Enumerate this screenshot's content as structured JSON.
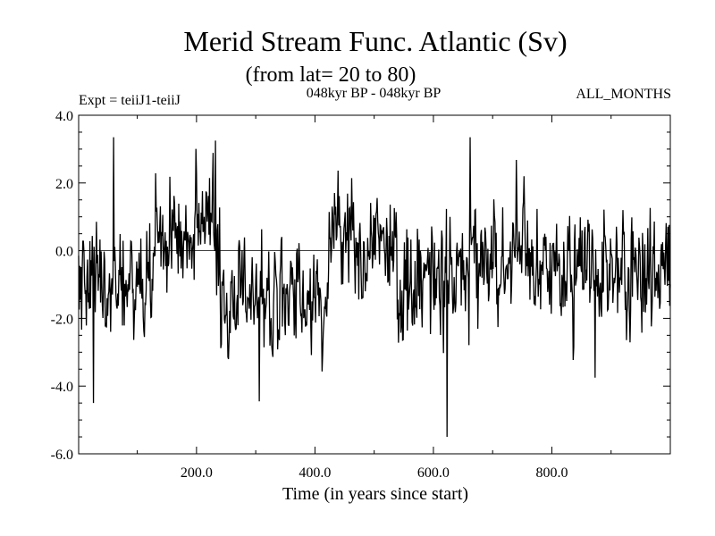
{
  "chart_data": {
    "type": "line",
    "title": "Merid Stream Func. Atlantic (Sv)",
    "subtitle": "(from lat= 20 to 80)",
    "experiment": "Expt = teiiJ1-teiiJ",
    "period": "048kyr BP - 048kyr BP",
    "months": "ALL_MONTHS",
    "xlabel": "Time (in years since start)",
    "ylabel": "",
    "xlim": [
      1,
      1000
    ],
    "ylim": [
      -6.0,
      4.0
    ],
    "x_ticks": [
      200,
      400,
      600,
      800
    ],
    "x_tick_labels": [
      "200.0",
      "400.0",
      "600.0",
      "800.0"
    ],
    "y_ticks": [
      -6,
      -4,
      -2,
      0,
      2,
      4
    ],
    "y_tick_labels": [
      "-6.0",
      "-4.0",
      "-2.0",
      "0.0",
      "2.0",
      "4.0"
    ],
    "zero_line": true,
    "grid": false,
    "line_color": "#000000",
    "series": [
      {
        "x_start": 1,
        "x_step": 1,
        "min": -5.5,
        "max": 3.4,
        "notable_points": [
          {
            "x": 60,
            "y": 3.35
          },
          {
            "x": 26,
            "y": -4.5
          },
          {
            "x": 232,
            "y": 3.25
          },
          {
            "x": 306,
            "y": -4.45
          },
          {
            "x": 623,
            "y": -5.5
          },
          {
            "x": 662,
            "y": 3.35
          },
          {
            "x": 873,
            "y": -3.75
          }
        ],
        "segment_means": [
          {
            "from": 1,
            "to": 130,
            "mean": -0.9
          },
          {
            "from": 130,
            "to": 240,
            "mean": 0.4
          },
          {
            "from": 240,
            "to": 420,
            "mean": -1.3
          },
          {
            "from": 420,
            "to": 540,
            "mean": 0.4
          },
          {
            "from": 540,
            "to": 640,
            "mean": -1.0
          },
          {
            "from": 640,
            "to": 760,
            "mean": -0.2
          },
          {
            "from": 760,
            "to": 1000,
            "mean": -0.6
          }
        ]
      }
    ]
  }
}
